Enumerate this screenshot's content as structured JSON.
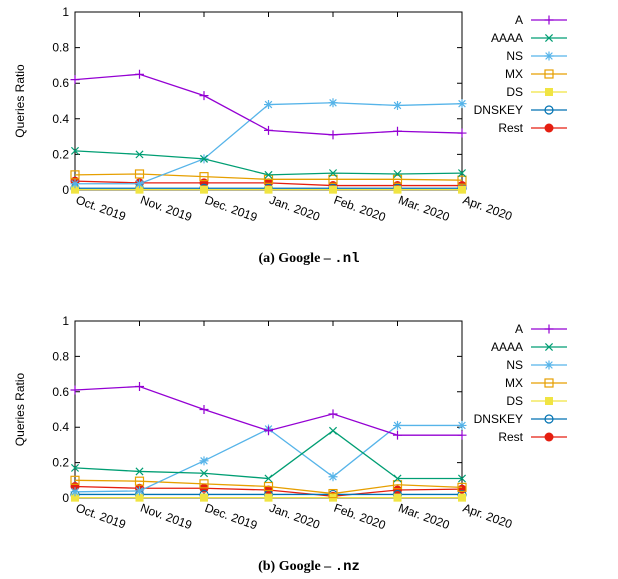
{
  "chart_data": [
    {
      "type": "line",
      "caption": {
        "prefix": "(a)  Google – ",
        "domain": ".nl"
      },
      "ylabel": "Queries Ratio",
      "ylim": [
        0,
        1
      ],
      "yticks": [
        "0",
        "0.2",
        "0.4",
        "0.6",
        "0.8",
        "1"
      ],
      "categories": [
        "Oct. 2019",
        "Nov. 2019",
        "Dec. 2019",
        "Jan. 2020",
        "Feb. 2020",
        "Mar. 2020",
        "Apr. 2020"
      ],
      "legend_position": "top-right",
      "grid": false,
      "series": [
        {
          "name": "A",
          "color": "#9400d3",
          "marker": "plus",
          "values": [
            0.62,
            0.65,
            0.53,
            0.335,
            0.31,
            0.33,
            0.32
          ]
        },
        {
          "name": "AAAA",
          "color": "#009e73",
          "marker": "cross",
          "values": [
            0.22,
            0.2,
            0.175,
            0.085,
            0.095,
            0.09,
            0.095
          ]
        },
        {
          "name": "NS",
          "color": "#56b4e9",
          "marker": "star",
          "values": [
            0.035,
            0.035,
            0.175,
            0.48,
            0.49,
            0.475,
            0.485
          ]
        },
        {
          "name": "MX",
          "color": "#e69f00",
          "marker": "open-square",
          "values": [
            0.085,
            0.09,
            0.075,
            0.06,
            0.06,
            0.06,
            0.055
          ]
        },
        {
          "name": "DS",
          "color": "#f0e442",
          "marker": "filled-square",
          "values": [
            0.002,
            0.002,
            0.002,
            0.002,
            0.002,
            0.002,
            0.002
          ]
        },
        {
          "name": "DNSKEY",
          "color": "#0072b2",
          "marker": "open-circle",
          "values": [
            0.01,
            0.01,
            0.01,
            0.01,
            0.01,
            0.01,
            0.01
          ]
        },
        {
          "name": "Rest",
          "color": "#e51e10",
          "marker": "filled-circle",
          "values": [
            0.05,
            0.04,
            0.04,
            0.04,
            0.025,
            0.025,
            0.025
          ]
        }
      ]
    },
    {
      "type": "line",
      "caption": {
        "prefix": "(b)  Google – ",
        "domain": ".nz"
      },
      "ylabel": "Queries Ratio",
      "ylim": [
        0,
        1
      ],
      "yticks": [
        "0",
        "0.2",
        "0.4",
        "0.6",
        "0.8",
        "1"
      ],
      "categories": [
        "Oct. 2019",
        "Nov. 2019",
        "Dec. 2019",
        "Jan. 2020",
        "Feb. 2020",
        "Mar. 2020",
        "Apr. 2020"
      ],
      "legend_position": "top-right",
      "grid": false,
      "series": [
        {
          "name": "A",
          "color": "#9400d3",
          "marker": "plus",
          "values": [
            0.61,
            0.63,
            0.5,
            0.38,
            0.475,
            0.355,
            0.355
          ]
        },
        {
          "name": "AAAA",
          "color": "#009e73",
          "marker": "cross",
          "values": [
            0.17,
            0.15,
            0.14,
            0.11,
            0.38,
            0.11,
            0.11
          ]
        },
        {
          "name": "NS",
          "color": "#56b4e9",
          "marker": "star",
          "values": [
            0.035,
            0.04,
            0.21,
            0.39,
            0.12,
            0.41,
            0.41
          ]
        },
        {
          "name": "MX",
          "color": "#e69f00",
          "marker": "open-square",
          "values": [
            0.1,
            0.095,
            0.08,
            0.065,
            0.025,
            0.075,
            0.06
          ]
        },
        {
          "name": "DS",
          "color": "#f0e442",
          "marker": "filled-square",
          "values": [
            0.002,
            0.002,
            0.002,
            0.002,
            0.002,
            0.002,
            0.002
          ]
        },
        {
          "name": "DNSKEY",
          "color": "#0072b2",
          "marker": "open-circle",
          "values": [
            0.02,
            0.02,
            0.02,
            0.02,
            0.02,
            0.02,
            0.02
          ]
        },
        {
          "name": "Rest",
          "color": "#e51e10",
          "marker": "filled-circle",
          "values": [
            0.065,
            0.055,
            0.055,
            0.045,
            0.01,
            0.045,
            0.05
          ]
        }
      ]
    }
  ]
}
